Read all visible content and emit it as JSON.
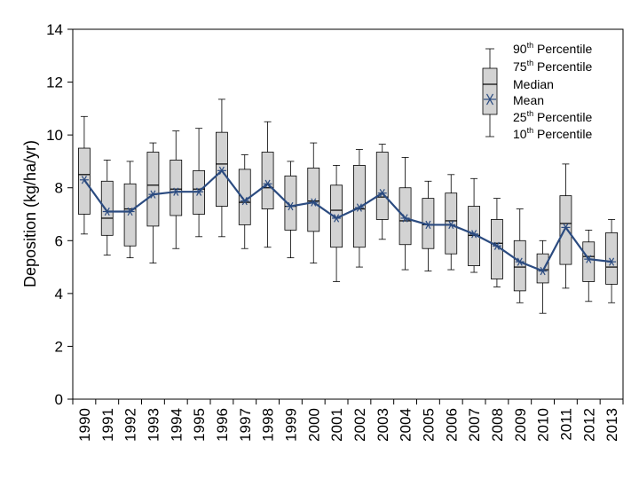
{
  "chart_data": {
    "type": "box",
    "title": "",
    "xlabel": "",
    "ylabel": "Deposition (kg/ha/yr)",
    "ylim": [
      0,
      14
    ],
    "yticks": [
      "0",
      "2",
      "4",
      "6",
      "8",
      "10",
      "12",
      "14"
    ],
    "grid": false,
    "legend_position": "top-right",
    "colors": {
      "box_fill": "#d3d3d3",
      "mean_line": "#2b4b80",
      "whisker": "#000000"
    },
    "legend": [
      {
        "label": "90",
        "sup": "th",
        "rest": " Percentile"
      },
      {
        "label": "75",
        "sup": "th",
        "rest": " Percentile"
      },
      {
        "label": "Median",
        "sup": "",
        "rest": ""
      },
      {
        "label": "Mean",
        "sup": "",
        "rest": ""
      },
      {
        "label": "25",
        "sup": "th",
        "rest": " Percentile"
      },
      {
        "label": "10",
        "sup": "th",
        "rest": " Percentile"
      }
    ],
    "series": [
      {
        "year": "1990",
        "p10": 6.25,
        "p25": 7.0,
        "median": 8.5,
        "mean": 8.3,
        "p75": 9.5,
        "p90": 10.7
      },
      {
        "year": "1991",
        "p10": 5.45,
        "p25": 6.2,
        "median": 6.85,
        "mean": 7.1,
        "p75": 8.25,
        "p90": 9.05
      },
      {
        "year": "1992",
        "p10": 5.35,
        "p25": 5.8,
        "median": 7.2,
        "mean": 7.1,
        "p75": 8.15,
        "p90": 9.0
      },
      {
        "year": "1993",
        "p10": 5.15,
        "p25": 6.55,
        "median": 8.1,
        "mean": 7.75,
        "p75": 9.35,
        "p90": 9.7
      },
      {
        "year": "1994",
        "p10": 5.7,
        "p25": 6.95,
        "median": 7.95,
        "mean": 7.85,
        "p75": 9.05,
        "p90": 10.15
      },
      {
        "year": "1995",
        "p10": 6.15,
        "p25": 7.0,
        "median": 7.95,
        "mean": 7.85,
        "p75": 8.65,
        "p90": 10.25
      },
      {
        "year": "1996",
        "p10": 6.15,
        "p25": 7.3,
        "median": 8.9,
        "mean": 8.65,
        "p75": 10.1,
        "p90": 11.35
      },
      {
        "year": "1997",
        "p10": 5.7,
        "p25": 6.6,
        "median": 7.45,
        "mean": 7.5,
        "p75": 8.7,
        "p90": 9.25
      },
      {
        "year": "1998",
        "p10": 5.75,
        "p25": 7.2,
        "median": 8.0,
        "mean": 8.15,
        "p75": 9.35,
        "p90": 10.5
      },
      {
        "year": "1999",
        "p10": 5.35,
        "p25": 6.4,
        "median": 7.3,
        "mean": 7.3,
        "p75": 8.45,
        "p90": 9.0
      },
      {
        "year": "2000",
        "p10": 5.15,
        "p25": 6.35,
        "median": 7.5,
        "mean": 7.45,
        "p75": 8.75,
        "p90": 9.7
      },
      {
        "year": "2001",
        "p10": 4.45,
        "p25": 5.75,
        "median": 7.15,
        "mean": 6.85,
        "p75": 8.1,
        "p90": 8.85
      },
      {
        "year": "2002",
        "p10": 5.0,
        "p25": 5.75,
        "median": 7.2,
        "mean": 7.25,
        "p75": 8.85,
        "p90": 9.45
      },
      {
        "year": "2003",
        "p10": 6.05,
        "p25": 6.8,
        "median": 7.65,
        "mean": 7.8,
        "p75": 9.35,
        "p90": 9.65
      },
      {
        "year": "2004",
        "p10": 4.9,
        "p25": 5.85,
        "median": 6.75,
        "mean": 6.85,
        "p75": 8.0,
        "p90": 9.15
      },
      {
        "year": "2005",
        "p10": 4.85,
        "p25": 5.7,
        "median": 6.6,
        "mean": 6.6,
        "p75": 7.6,
        "p90": 8.25
      },
      {
        "year": "2006",
        "p10": 4.9,
        "p25": 5.5,
        "median": 6.75,
        "mean": 6.6,
        "p75": 7.8,
        "p90": 8.5
      },
      {
        "year": "2007",
        "p10": 4.8,
        "p25": 5.05,
        "median": 6.2,
        "mean": 6.25,
        "p75": 7.3,
        "p90": 8.35
      },
      {
        "year": "2008",
        "p10": 4.25,
        "p25": 4.55,
        "median": 5.9,
        "mean": 5.8,
        "p75": 6.8,
        "p90": 7.6
      },
      {
        "year": "2009",
        "p10": 3.65,
        "p25": 4.1,
        "median": 5.0,
        "mean": 5.2,
        "p75": 6.0,
        "p90": 7.2
      },
      {
        "year": "2010",
        "p10": 3.25,
        "p25": 4.4,
        "median": 4.9,
        "mean": 4.85,
        "p75": 5.5,
        "p90": 6.0
      },
      {
        "year": "2011",
        "p10": 4.2,
        "p25": 5.1,
        "median": 6.65,
        "mean": 6.5,
        "p75": 7.7,
        "p90": 8.9
      },
      {
        "year": "2012",
        "p10": 3.7,
        "p25": 4.45,
        "median": 5.4,
        "mean": 5.3,
        "p75": 5.95,
        "p90": 6.4
      },
      {
        "year": "2013",
        "p10": 3.65,
        "p25": 4.35,
        "median": 5.0,
        "mean": 5.2,
        "p75": 6.3,
        "p90": 6.8
      }
    ]
  }
}
